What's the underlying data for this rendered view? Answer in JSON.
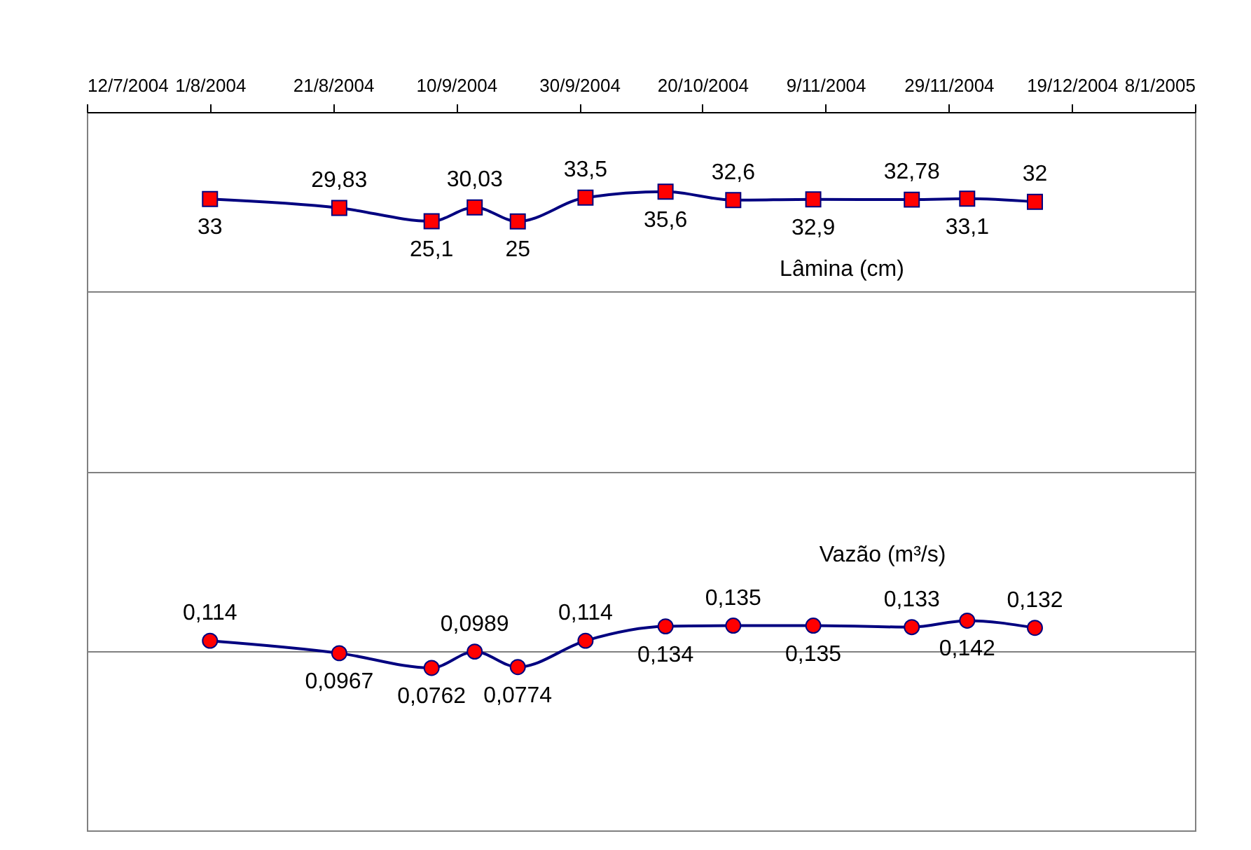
{
  "chart_data": {
    "type": "line",
    "x": [
      "2004-08-01",
      "2004-08-22",
      "2004-09-06",
      "2004-09-13",
      "2004-09-20",
      "2004-10-01",
      "2004-10-14",
      "2004-10-25",
      "2004-11-07",
      "2004-11-23",
      "2004-12-02",
      "2004-12-13"
    ],
    "xlim": [
      "2004-07-12",
      "2005-01-08"
    ],
    "xticks": [
      {
        "value": "2004-07-12",
        "label": "12/7/2004"
      },
      {
        "value": "2004-08-01",
        "label": "1/8/2004"
      },
      {
        "value": "2004-08-21",
        "label": "21/8/2004"
      },
      {
        "value": "2004-09-10",
        "label": "10/9/2004"
      },
      {
        "value": "2004-09-30",
        "label": "30/9/2004"
      },
      {
        "value": "2004-10-20",
        "label": "20/10/2004"
      },
      {
        "value": "2004-11-09",
        "label": "9/11/2004"
      },
      {
        "value": "2004-11-29",
        "label": "29/11/2004"
      },
      {
        "value": "2004-12-19",
        "label": "19/12/2004"
      },
      {
        "value": "2005-01-08",
        "label": "8/1/2005"
      }
    ],
    "ylim": [
      -192,
      64
    ],
    "yticks": [
      {
        "value": -128,
        "label": null
      },
      {
        "value": -64,
        "label": null
      },
      {
        "value": 0,
        "label": null
      }
    ],
    "y2lim": [
      -0.15,
      0.85
    ],
    "tick_labels": "x",
    "grid": "y",
    "series": [
      {
        "name": "Lâmina (cm)",
        "color": "#000080",
        "colors": [
          "#ff0000",
          "#ff0000",
          "#ff0000",
          "#ff0000",
          "#ff0000",
          "#ff0000",
          "#ff0000",
          "#ff0000",
          "#ff0000",
          "#ff0000",
          "#ff0000",
          "#ff0000"
        ],
        "marker": "square",
        "values": [
          33,
          29.83,
          25.1,
          30.03,
          25,
          33.5,
          35.6,
          32.6,
          32.9,
          32.78,
          33.1,
          32
        ],
        "value_labels": [
          "33",
          "29,83",
          "25,1",
          "30,03",
          "25",
          "33,5",
          "35,6",
          "32,6",
          "32,9",
          "32,78",
          "33,1",
          "32"
        ]
      },
      {
        "name": "Vazão (m³/s)",
        "axis": "y2",
        "color": "#000080",
        "colors": [
          "#ff0000",
          "#ff0000",
          "#ff0000",
          "#ff0000",
          "#ff0000",
          "#ff0000",
          "#ff0000",
          "#ff0000",
          "#ff0000",
          "#ff0000",
          "#ff0000",
          "#ff0000"
        ],
        "marker": "circle",
        "values": [
          0.114,
          0.0967,
          0.0762,
          0.0989,
          0.0774,
          0.114,
          0.134,
          0.135,
          0.135,
          0.133,
          0.142,
          0.132
        ],
        "value_labels": [
          "0,114",
          "0,0967",
          "0,0762",
          "0,0989",
          "0,0774",
          "0,114",
          "0,134",
          "0,135",
          "0,135",
          "0,133",
          "0,142",
          "0,132"
        ]
      }
    ]
  }
}
